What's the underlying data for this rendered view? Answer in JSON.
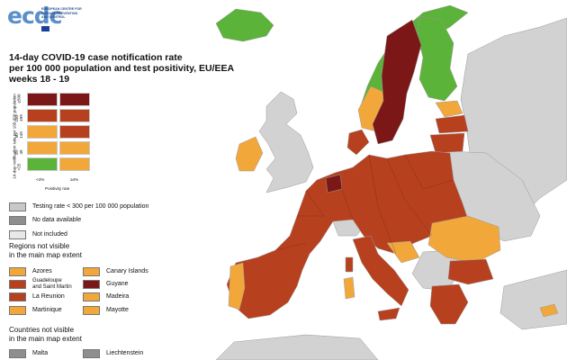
{
  "logo": {
    "word": "ecdc",
    "subtitle": "EUROPEAN CENTRE FOR DISEASE PREVENTION AND CONTROL"
  },
  "title": {
    "line1": "14-day COVID-19 case notification rate",
    "line2": "per 100 000 population and test positivity, EU/EEA",
    "line3": "weeks 18 - 19"
  },
  "matrix_legend": {
    "y_axis_label": "14-day notification rate per 100 000 population",
    "y_ticks": [
      "≥500",
      "150-499",
      "50-149",
      "25-49",
      "<25"
    ],
    "x_ticks": [
      "<4%",
      "≥4%"
    ],
    "x_axis_label": "Positivity rate",
    "rows": [
      [
        "#7b1716",
        "#7b1716"
      ],
      [
        "#b7401f",
        "#b7401f"
      ],
      [
        "#f2a73b",
        "#b7401f"
      ],
      [
        "#f2a73b",
        "#f2a73b"
      ],
      [
        "#5bb33a",
        "#f2a73b"
      ]
    ]
  },
  "status_legend": [
    {
      "label": "Testing rate < 300 per 100 000 population",
      "color": "#c8c8c8"
    },
    {
      "label": "No data available",
      "color": "#8e8e8e"
    },
    {
      "label": "Not included",
      "color": "#e8e8e8"
    }
  ],
  "regions_section": {
    "heading_line1": "Regions not visible",
    "heading_line2": "in the main map extent",
    "items": [
      {
        "label": "Azores",
        "color": "#f2a73b"
      },
      {
        "label": "Canary Islands",
        "color": "#f2a73b"
      },
      {
        "label": "Guadeloupe and Saint Martin",
        "line1": "Guadeloupe",
        "line2": "and Saint Martin",
        "color": "#b7401f"
      },
      {
        "label": "Guyane",
        "color": "#7b1716"
      },
      {
        "label": "La Reunion",
        "color": "#b7401f"
      },
      {
        "label": "Madeira",
        "color": "#f2a73b"
      },
      {
        "label": "Martinique",
        "color": "#f2a73b"
      },
      {
        "label": "Mayotte",
        "color": "#f2a73b"
      }
    ]
  },
  "countries_section": {
    "heading_line1": "Countries not visible",
    "heading_line2": "in the main map extent",
    "items": [
      {
        "label": "Malta",
        "color": "#8e8e8e"
      },
      {
        "label": "Liechtenstein",
        "color": "#8e8e8e"
      }
    ]
  },
  "colors": {
    "sea": "#ffffff",
    "non_eu_land": "#d2d2d2",
    "dark_red": "#7b1716",
    "red": "#b7401f",
    "orange": "#f2a73b",
    "green": "#5bb33a",
    "borders": "#8a8a8a"
  }
}
